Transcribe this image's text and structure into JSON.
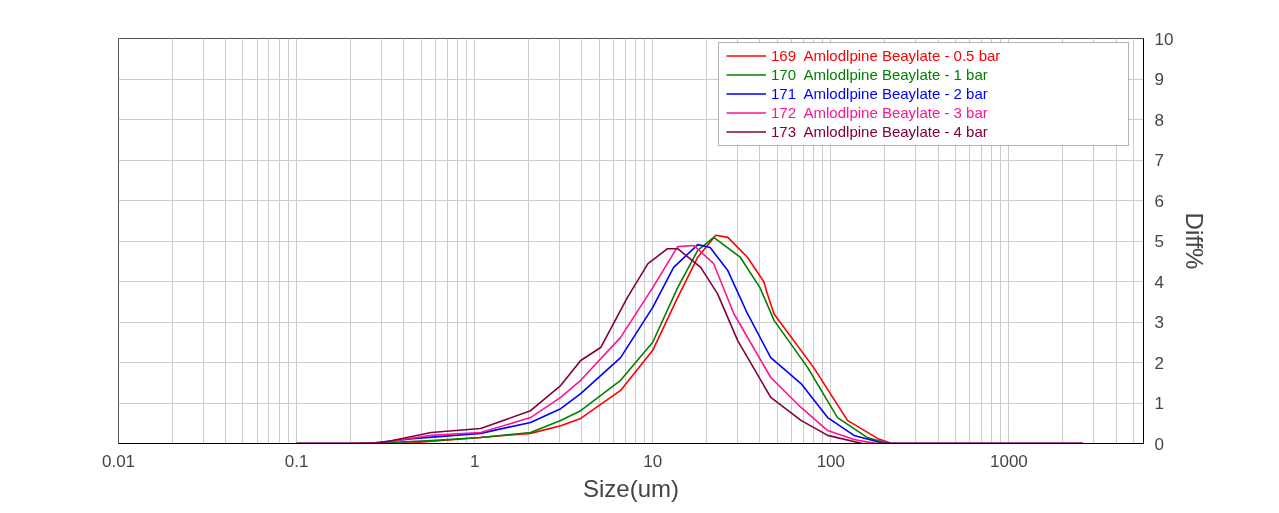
{
  "chart_data": {
    "type": "line",
    "xlabel": "Size(um)",
    "ylabel": "Diff%",
    "log": "x",
    "grid": true,
    "legend": "top right",
    "marker": "none",
    "line_style": "solid",
    "xlim": [
      0.01,
      5700
    ],
    "xticks": [
      0.01,
      0.1,
      1,
      10,
      100,
      1000
    ],
    "ylim": [
      0,
      10
    ],
    "yticks": [
      0,
      1,
      2,
      3,
      4,
      5,
      6,
      7,
      8,
      9,
      10
    ],
    "series": [
      {
        "name": "169  Amlodlpine Beaylate - 0.5 bar",
        "color": "#ff0000",
        "x": [
          0.1,
          0.3,
          0.45,
          1.08,
          2.06,
          3.04,
          3.94,
          6.6,
          10,
          13.8,
          17.9,
          22.6,
          26.4,
          34,
          42,
          44,
          48,
          80,
          124,
          184,
          220,
          2600
        ],
        "values": [
          0,
          0,
          0.02,
          0.15,
          0.25,
          0.44,
          0.62,
          1.31,
          2.3,
          3.6,
          4.6,
          5.14,
          5.09,
          4.6,
          4.0,
          3.7,
          3.2,
          1.88,
          0.57,
          0.12,
          0,
          0
        ]
      },
      {
        "name": "170  Amlodlpine Beaylate - 1 bar",
        "color": "#008000",
        "x": [
          0.1,
          0.25,
          0.57,
          1.08,
          2.06,
          3.04,
          3.94,
          6.6,
          10,
          13.8,
          17.9,
          22,
          31,
          40,
          48,
          74,
          109,
          160,
          210,
          2600
        ],
        "values": [
          0,
          0,
          0.07,
          0.15,
          0.27,
          0.57,
          0.81,
          1.56,
          2.5,
          3.85,
          4.77,
          5.09,
          4.6,
          3.85,
          3.04,
          1.88,
          0.64,
          0.15,
          0,
          0
        ]
      },
      {
        "name": "171  Amlodlpine Beaylate - 2 bar",
        "color": "#0000ff",
        "x": [
          0.1,
          0.25,
          0.45,
          1.08,
          2.06,
          3.04,
          3.94,
          6.6,
          10,
          13.1,
          17.9,
          21,
          26.4,
          34,
          46,
          68,
          96,
          135,
          200,
          2600
        ],
        "values": [
          0,
          0,
          0.12,
          0.25,
          0.52,
          0.86,
          1.23,
          2.12,
          3.36,
          4.35,
          4.91,
          4.84,
          4.27,
          3.21,
          2.12,
          1.48,
          0.64,
          0.2,
          0,
          0
        ]
      },
      {
        "name": "172  Amlodlpine Beaylate - 3 bar",
        "color": "#ff1493",
        "x": [
          0.1,
          0.2,
          0.3,
          0.57,
          1.08,
          2.06,
          3.04,
          3.94,
          6.6,
          10,
          13.8,
          17,
          22,
          28.5,
          46,
          68,
          96,
          135,
          180,
          2600
        ],
        "values": [
          0,
          0,
          0.02,
          0.2,
          0.27,
          0.64,
          1.14,
          1.56,
          2.62,
          3.85,
          4.86,
          4.89,
          4.44,
          3.21,
          1.63,
          0.89,
          0.32,
          0.1,
          0,
          0
        ]
      },
      {
        "name": "173  Amlodlpine Beaylate - 4 bar",
        "color": "#800040",
        "x": [
          0.1,
          0.2,
          0.3,
          0.57,
          1.08,
          2.06,
          3.04,
          3.94,
          5.1,
          7.2,
          9.4,
          12.1,
          13.8,
          18.6,
          23.1,
          30,
          46,
          68,
          96,
          150,
          2600
        ],
        "values": [
          0,
          0,
          0.02,
          0.27,
          0.37,
          0.81,
          1.43,
          2.05,
          2.37,
          3.6,
          4.44,
          4.81,
          4.81,
          4.35,
          3.7,
          2.54,
          1.14,
          0.57,
          0.2,
          0,
          0
        ]
      }
    ]
  }
}
